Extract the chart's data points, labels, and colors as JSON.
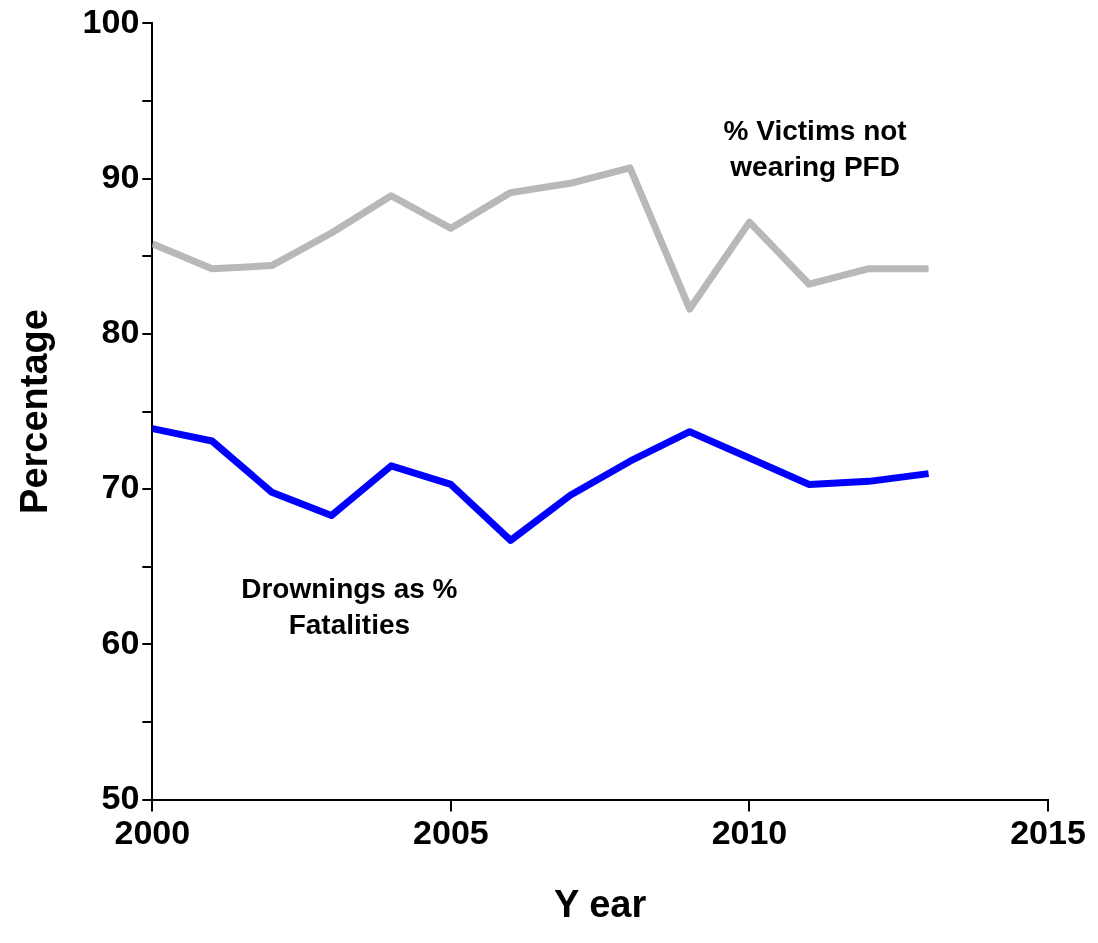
{
  "chart_data": {
    "type": "line",
    "xlabel": "Y ear",
    "ylabel": "Percentage",
    "x": [
      2000,
      2001,
      2002,
      2003,
      2004,
      2005,
      2006,
      2007,
      2008,
      2009,
      2010,
      2011,
      2012,
      2013
    ],
    "series": [
      {
        "name": "% Victims not wearing PFD",
        "color": "#b8b8b8",
        "values": [
          85.8,
          84.2,
          84.4,
          86.5,
          88.9,
          86.8,
          89.1,
          89.7,
          90.7,
          81.6,
          87.2,
          83.2,
          84.2,
          84.2
        ]
      },
      {
        "name": "Drownings as % Fatalities",
        "color": "#0000ff",
        "values": [
          73.9,
          73.1,
          69.8,
          68.3,
          71.5,
          70.3,
          66.7,
          69.6,
          71.8,
          73.7,
          72.0,
          70.3,
          70.5,
          71.0
        ]
      }
    ],
    "xlim": [
      2000,
      2015
    ],
    "xticks": [
      2000,
      2005,
      2010,
      2015
    ],
    "ylim": [
      50,
      100
    ],
    "yticks": [
      50,
      {
        "value": 55,
        "label": null
      },
      60,
      {
        "value": 65,
        "label": null
      },
      70,
      {
        "value": 75,
        "label": null
      },
      80,
      {
        "value": 85,
        "label": null
      },
      90,
      {
        "value": 95,
        "label": null
      },
      100
    ],
    "grid": false,
    "legend": false,
    "marker": "none",
    "line_style": "solid"
  }
}
